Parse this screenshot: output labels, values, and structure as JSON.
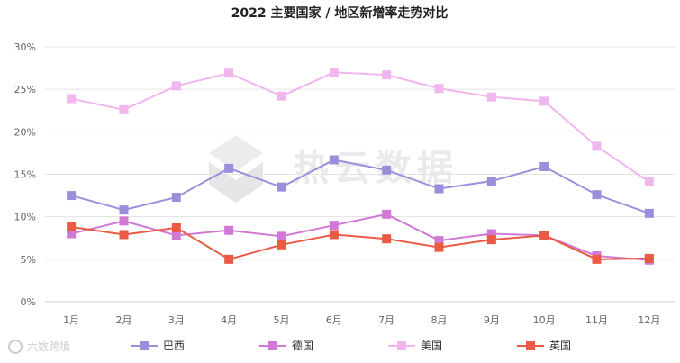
{
  "watermark": {
    "text": "热云数据",
    "corner_text": "六数跨境"
  },
  "chart_data": {
    "type": "line",
    "title": "2022 主要国家 / 地区新增率走势对比",
    "categories": [
      "1月",
      "2月",
      "3月",
      "4月",
      "5月",
      "6月",
      "7月",
      "8月",
      "9月",
      "10月",
      "11月",
      "12月"
    ],
    "ylim": [
      0,
      30
    ],
    "yticks": [
      "0%",
      "5%",
      "10%",
      "15%",
      "20%",
      "25%",
      "30%"
    ],
    "grid": true,
    "legend_position": "bottom",
    "series": [
      {
        "name": "巴西",
        "color": "#9b8fdc",
        "values": [
          12.5,
          10.8,
          12.3,
          15.7,
          13.5,
          16.7,
          15.5,
          13.3,
          14.2,
          15.9,
          12.6,
          10.4
        ]
      },
      {
        "name": "德国",
        "color": "#d07ad6",
        "values": [
          8.0,
          9.5,
          7.8,
          8.4,
          7.7,
          9.0,
          10.3,
          7.2,
          8.0,
          7.8,
          5.4,
          4.9
        ]
      },
      {
        "name": "美国",
        "color": "#f2b6ef",
        "values": [
          23.9,
          22.6,
          25.4,
          26.9,
          24.2,
          27.0,
          26.7,
          25.1,
          24.1,
          23.6,
          18.3,
          14.1
        ]
      },
      {
        "name": "英国",
        "color": "#ea5a45",
        "values": [
          8.8,
          7.9,
          8.7,
          5.0,
          6.7,
          7.9,
          7.4,
          6.4,
          7.3,
          7.8,
          5.0,
          5.1
        ]
      }
    ]
  }
}
